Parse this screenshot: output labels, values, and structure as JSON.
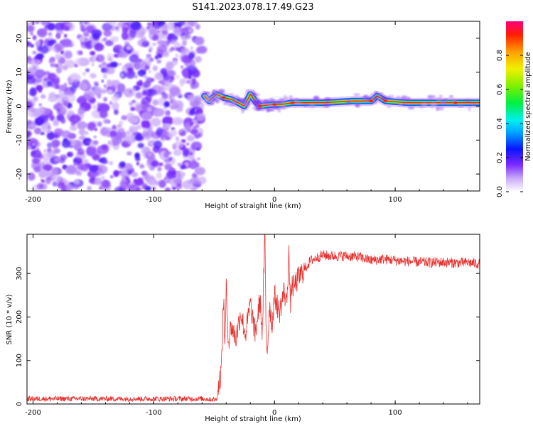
{
  "title": "S141.2023.078.17.49.G23",
  "chart_data": [
    {
      "type": "heatmap",
      "xlabel": "Height of straight line (km)",
      "ylabel": "Frequency (Hz)",
      "xlim": [
        -205,
        170
      ],
      "ylim": [
        -25,
        25
      ],
      "x_ticks": [
        -200,
        -100,
        0,
        100
      ],
      "y_ticks": [
        -20,
        -10,
        0,
        10,
        20
      ],
      "grid": false,
      "noise_region": {
        "x_from": -205,
        "x_to": -60,
        "freq_from": -25,
        "freq_to": 25
      },
      "signal_track": [
        {
          "x": -58,
          "freq": 3.0,
          "amp": 0.5
        },
        {
          "x": -54,
          "freq": 1.5,
          "amp": 0.55
        },
        {
          "x": -48,
          "freq": 3.5,
          "amp": 0.7
        },
        {
          "x": -42,
          "freq": 2.5,
          "amp": 0.9
        },
        {
          "x": -36,
          "freq": 2.0,
          "amp": 0.7
        },
        {
          "x": -30,
          "freq": 1.0,
          "amp": 0.6
        },
        {
          "x": -25,
          "freq": 0.0,
          "amp": 0.8
        },
        {
          "x": -20,
          "freq": 3.5,
          "amp": 0.7
        },
        {
          "x": -16,
          "freq": 1.5,
          "amp": 0.6
        },
        {
          "x": -12,
          "freq": 0.0,
          "amp": 0.9
        },
        {
          "x": -6,
          "freq": 0.3,
          "amp": 0.75
        },
        {
          "x": 0,
          "freq": 0.5,
          "amp": 0.85
        },
        {
          "x": 6,
          "freq": 0.5,
          "amp": 0.7
        },
        {
          "x": 15,
          "freq": 1.0,
          "amp": 0.95
        },
        {
          "x": 40,
          "freq": 1.0,
          "amp": 0.95
        },
        {
          "x": 65,
          "freq": 1.5,
          "amp": 0.9
        },
        {
          "x": 80,
          "freq": 1.5,
          "amp": 0.95
        },
        {
          "x": 85,
          "freq": 3.0,
          "amp": 0.7
        },
        {
          "x": 92,
          "freq": 1.5,
          "amp": 0.95
        },
        {
          "x": 110,
          "freq": 1.0,
          "amp": 0.95
        },
        {
          "x": 130,
          "freq": 1.0,
          "amp": 0.85
        },
        {
          "x": 150,
          "freq": 1.0,
          "amp": 0.95
        },
        {
          "x": 170,
          "freq": 1.0,
          "amp": 0.95
        }
      ],
      "colorbar": {
        "label": "Normalized spectral amplitude",
        "range": [
          0,
          1
        ],
        "ticks": [
          "0.0",
          "0.2",
          "0.4",
          "0.6",
          "0.8"
        ]
      }
    },
    {
      "type": "line",
      "xlabel": "Height of straight line (km)",
      "ylabel": "SNR (10 * v/v)",
      "xlim": [
        -205,
        170
      ],
      "ylim": [
        0,
        390
      ],
      "x_ticks": [
        -200,
        -100,
        0,
        100
      ],
      "y_ticks": [
        0,
        100,
        200,
        300
      ],
      "grid": false,
      "series": [
        {
          "color": "#e8312f",
          "x": [
            -205,
            -60,
            -48,
            -44,
            -42,
            -41,
            -40,
            -38,
            -36,
            -32,
            -28,
            -24,
            -20,
            -16,
            -12,
            -10,
            -9,
            -8,
            -7,
            -6,
            -4,
            -2,
            0,
            4,
            8,
            10,
            12,
            13,
            14,
            16,
            20,
            25,
            30,
            40,
            50,
            60,
            70,
            80,
            90,
            100,
            110,
            120,
            130,
            140,
            150,
            160,
            170
          ],
          "values": [
            12,
            12,
            10,
            80,
            250,
            120,
            270,
            140,
            180,
            150,
            210,
            160,
            230,
            160,
            240,
            160,
            280,
            390,
            180,
            120,
            230,
            180,
            250,
            210,
            260,
            230,
            350,
            220,
            270,
            270,
            290,
            310,
            330,
            342,
            340,
            340,
            338,
            330,
            333,
            330,
            328,
            326,
            325,
            326,
            324,
            325,
            322
          ]
        }
      ],
      "noise_amplitude": {
        "baseline": 6,
        "ramp": 28,
        "plateau": 12,
        "spike_at_x": -8
      }
    }
  ]
}
